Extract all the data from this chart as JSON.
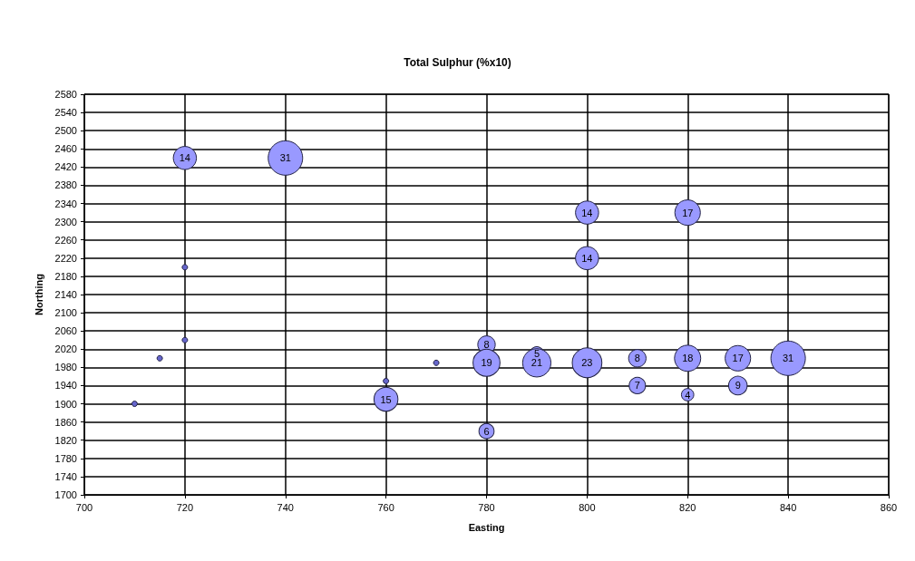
{
  "chart_data": {
    "type": "bubble",
    "title": "Total Sulphur (%x10)",
    "xlabel": "Easting",
    "ylabel": "Northing",
    "series": [
      {
        "color": "#9999ff",
        "x": [
          720,
          740,
          760,
          780,
          780,
          780,
          790,
          790,
          800,
          800,
          800,
          810,
          810,
          820,
          820,
          820,
          830,
          830,
          840
        ],
        "values": [
          2440,
          2440,
          1910,
          2030,
          1990,
          1840,
          2010,
          1990,
          2320,
          2220,
          1990,
          2000,
          1940,
          2320,
          2000,
          1920,
          2000,
          1940,
          2000
        ],
        "sizes": [
          14,
          31,
          15,
          8,
          19,
          6,
          5,
          21,
          14,
          14,
          23,
          8,
          7,
          17,
          18,
          4,
          17,
          9,
          31
        ],
        "value_labels": [
          "14",
          "31",
          "15",
          "8",
          "19",
          "6",
          "5",
          "21",
          "14",
          "14",
          "23",
          "8",
          "7",
          "17",
          "18",
          "4",
          "17",
          "9",
          "31"
        ]
      },
      {
        "type": "scatter",
        "color": "#6666cc",
        "marker": "circle",
        "x": [
          710,
          715,
          720,
          720,
          760,
          770
        ],
        "values": [
          1900,
          2000,
          2040,
          2200,
          1950,
          1990
        ]
      }
    ],
    "xlim": [
      700,
      860
    ],
    "xticks": [
      700,
      720,
      740,
      760,
      780,
      800,
      820,
      840,
      860
    ],
    "ylim": [
      1700,
      2580
    ],
    "yticks": [
      1700,
      1740,
      1780,
      1820,
      1860,
      1900,
      1940,
      1980,
      2020,
      2060,
      2100,
      2140,
      2180,
      2220,
      2260,
      2300,
      2340,
      2380,
      2420,
      2460,
      2500,
      2540,
      2580
    ],
    "grid": true
  }
}
